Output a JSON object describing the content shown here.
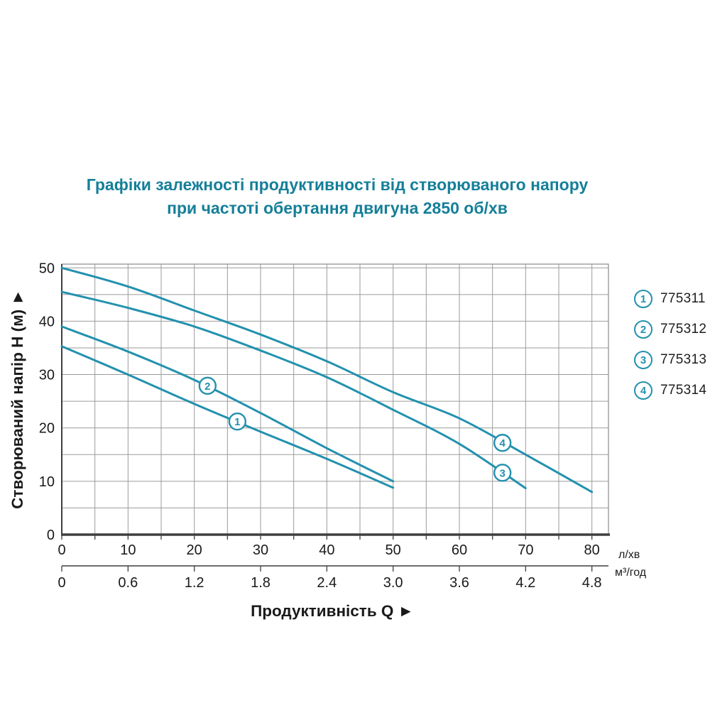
{
  "title": {
    "line1": "Графіки залежності продуктивності від створюваного напору",
    "line2": "при частоті обертання двигуна 2850 об/хв",
    "color": "#157f99"
  },
  "legend": {
    "items": [
      {
        "num": "1",
        "code": "775311"
      },
      {
        "num": "2",
        "code": "775312"
      },
      {
        "num": "3",
        "code": "775313"
      },
      {
        "num": "4",
        "code": "775314"
      }
    ]
  },
  "chart_data": {
    "type": "line",
    "title": "Графіки залежності продуктивності від створюваного напору при частоті обертання двигуна 2850 об/хв",
    "xlabel": "Продуктивність  Q",
    "xlabel_arrow": "►",
    "ylabel": "Створюваний напір Н (м)",
    "ylabel_arrow": "►",
    "x_axis": {
      "primary_unit": "л/хв",
      "primary_ticks": [
        0,
        10,
        20,
        30,
        40,
        50,
        60,
        70,
        80
      ],
      "secondary_unit": "м³/год",
      "secondary_ticks": [
        "0",
        "0.6",
        "1.2",
        "1.8",
        "2.4",
        "3.0",
        "3.6",
        "4.2",
        "4.8"
      ],
      "range": [
        0,
        82.5
      ],
      "grid_step": 5
    },
    "y_axis": {
      "ticks": [
        0,
        10,
        20,
        30,
        40,
        50
      ],
      "range": [
        0,
        50.7
      ],
      "grid_step": 5
    },
    "grid": true,
    "legend_position": "right",
    "colors": {
      "curve": "#2391ae",
      "grid": "#9b9b9b",
      "frame": "#8a8a8a",
      "axis": "#3f3f3f",
      "text": "#1a1a1a",
      "title": "#157f99"
    },
    "series": [
      {
        "num": "1",
        "name": "775311",
        "marker_at": [
          26.5,
          21.2
        ],
        "points": [
          [
            0,
            35.3
          ],
          [
            10,
            30
          ],
          [
            20,
            24.5
          ],
          [
            30,
            19.3
          ],
          [
            40,
            14.2
          ],
          [
            50,
            8.8
          ]
        ]
      },
      {
        "num": "2",
        "name": "775312",
        "marker_at": [
          22,
          27.9
        ],
        "points": [
          [
            0,
            39
          ],
          [
            10,
            34.3
          ],
          [
            20,
            29
          ],
          [
            30,
            22.8
          ],
          [
            40,
            16.2
          ],
          [
            50,
            10
          ]
        ]
      },
      {
        "num": "3",
        "name": "775313",
        "marker_at": [
          66.5,
          11.6
        ],
        "points": [
          [
            0,
            45.5
          ],
          [
            10,
            42.5
          ],
          [
            20,
            39
          ],
          [
            30,
            34.5
          ],
          [
            40,
            29.5
          ],
          [
            50,
            23.4
          ],
          [
            60,
            17
          ],
          [
            70,
            8.7
          ]
        ]
      },
      {
        "num": "4",
        "name": "775314",
        "marker_at": [
          66.5,
          17.2
        ],
        "points": [
          [
            0,
            50
          ],
          [
            10,
            46.5
          ],
          [
            20,
            42
          ],
          [
            30,
            37.5
          ],
          [
            40,
            32.5
          ],
          [
            50,
            26.7
          ],
          [
            60,
            21.8
          ],
          [
            70,
            15
          ],
          [
            80,
            8
          ]
        ]
      }
    ]
  }
}
